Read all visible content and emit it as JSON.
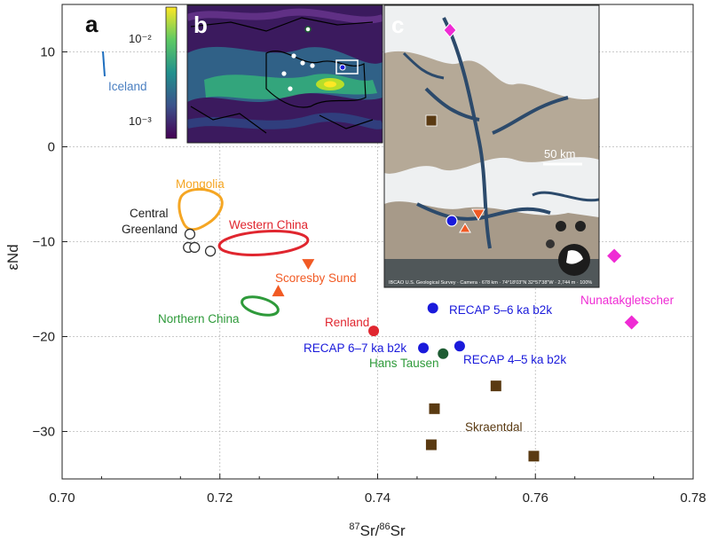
{
  "chart_data": {
    "type": "scatter",
    "xlabel_main": "Sr",
    "xlabel_sup1": "87",
    "xlabel_mid": "Sr/",
    "xlabel_sup2": "86",
    "ylabel": "εNd",
    "xlim": [
      0.7,
      0.78
    ],
    "ylim": [
      -35,
      15
    ],
    "x_ticks": [
      "0.70",
      "0.72",
      "0.74",
      "0.76",
      "0.78"
    ],
    "x_tick_values": [
      0.7,
      0.72,
      0.74,
      0.76,
      0.78
    ],
    "y_ticks": [
      "10",
      "0",
      "−10",
      "−20",
      "−30"
    ],
    "y_tick_values": [
      10,
      0,
      -10,
      -20,
      -30
    ],
    "grid": true,
    "panel_labels": [
      "a",
      "b",
      "c"
    ],
    "regions": [
      {
        "name": "Mongolia",
        "color": "#f5a623",
        "cx": 0.7155,
        "cy": -6.5
      },
      {
        "name": "Western China",
        "color": "#e0262f",
        "cx": 0.7255,
        "cy": -10.0
      },
      {
        "name": "Northern China",
        "color": "#2e9a3a",
        "cx": 0.7245,
        "cy": -16.8
      },
      {
        "name": "Iceland",
        "color": "#1f6fbf",
        "x1": 0.7034,
        "y1": 10.0,
        "x2": 0.7036,
        "y2": 7.5
      }
    ],
    "series": [
      {
        "name": "Central Greenland",
        "marker": "open-circle",
        "color": "#333333",
        "points": [
          [
            0.7162,
            -9.2
          ],
          [
            0.716,
            -10.6
          ],
          [
            0.7168,
            -10.6
          ],
          [
            0.7188,
            -11.0
          ]
        ]
      },
      {
        "name": "Scoresby Sund",
        "marker": "triangle",
        "color": "#f15a24",
        "points": [
          [
            0.7312,
            -12.4
          ],
          [
            0.7274,
            -15.2
          ]
        ]
      },
      {
        "name": "Renland",
        "marker": "circle",
        "color": "#e0262f",
        "points": [
          [
            0.7395,
            -19.4
          ]
        ]
      },
      {
        "name": "RECAP 5–6 ka b2k",
        "marker": "circle",
        "color": "#1a1adb",
        "points": [
          [
            0.747,
            -17.0
          ]
        ]
      },
      {
        "name": "RECAP 6–7 ka b2k",
        "marker": "circle",
        "color": "#1a1adb",
        "points": [
          [
            0.7458,
            -21.2
          ]
        ]
      },
      {
        "name": "RECAP 4–5 ka b2k",
        "marker": "circle",
        "color": "#1a1adb",
        "points": [
          [
            0.7504,
            -21.0
          ]
        ]
      },
      {
        "name": "Hans Tausen",
        "marker": "circle",
        "color": "#1e5c33",
        "points": [
          [
            0.7483,
            -21.8
          ]
        ]
      },
      {
        "name": "Skraentdal",
        "marker": "square",
        "color": "#5a3a12",
        "points": [
          [
            0.755,
            -25.2
          ],
          [
            0.7472,
            -27.6
          ],
          [
            0.7468,
            -31.4
          ],
          [
            0.7598,
            -32.6
          ]
        ]
      },
      {
        "name": "Nunatakgletscher",
        "marker": "diamond",
        "color": "#ef2bd4",
        "points": [
          [
            0.77,
            -11.5
          ],
          [
            0.7722,
            -18.5
          ]
        ]
      }
    ],
    "inset_b": {
      "colorbar_ticks": [
        "10⁻²",
        "10⁻³"
      ]
    },
    "inset_c": {
      "scale_label": "50 km",
      "attribution": "IBCAO U.S. Geological Survey · Camera · 678 km · 74°18'03\"N 32°57'38\"W · 2,744 m · 100%"
    }
  },
  "labels": {
    "iceland": "Iceland",
    "mongolia": "Mongolia",
    "central_greenland_1": "Central",
    "central_greenland_2": "Greenland",
    "western_china": "Western China",
    "scoresby_sund": "Scoresby Sund",
    "northern_china": "Northern China",
    "renland": "Renland",
    "recap56": "RECAP 5–6 ka b2k",
    "recap67": "RECAP 6–7 ka b2k",
    "recap45": "RECAP 4–5 ka b2k",
    "hans_tausen": "Hans Tausen",
    "skraentdal": "Skraentdal",
    "nunatak": "Nunatakgletscher"
  }
}
